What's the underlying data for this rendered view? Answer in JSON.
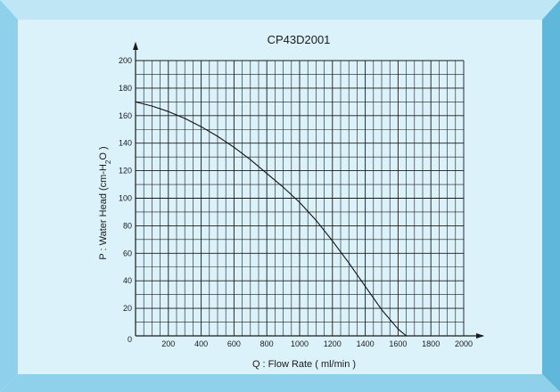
{
  "colors": {
    "panel": "#dcf2fa",
    "bevel_light": "#bfe6f4",
    "bevel_mid": "#8fd0ea",
    "bevel_dark": "#5fb8dc",
    "grid": "#1a1a1a",
    "curve": "#111111"
  },
  "chart_data": {
    "type": "line",
    "title": "CP43D2001",
    "xlabel": "Q : Flow Rate ( ml/min )",
    "ylabel_main": "P : Water Head  (cm-H",
    "ylabel_sub": "2",
    "ylabel_end": "O )",
    "xlim": [
      0,
      2000
    ],
    "ylim": [
      0,
      200
    ],
    "x_major_step": 200,
    "x_minor_step": 50,
    "y_major_step": 20,
    "y_minor_step": 10,
    "x_ticks": [
      "200",
      "400",
      "600",
      "800",
      "1000",
      "1200",
      "1400",
      "1600",
      "1800",
      "2000"
    ],
    "y_ticks": [
      "0",
      "20",
      "40",
      "60",
      "80",
      "100",
      "120",
      "140",
      "160",
      "180",
      "200"
    ],
    "grid": true,
    "series": [
      {
        "x": [
          0,
          100,
          200,
          300,
          400,
          500,
          600,
          700,
          800,
          900,
          1000,
          1100,
          1200,
          1300,
          1400,
          1500,
          1600,
          1650
        ],
        "y": [
          170,
          167,
          163,
          158,
          152,
          145,
          137,
          128,
          118,
          108,
          97,
          84,
          69,
          53,
          36,
          19,
          5,
          0
        ]
      }
    ]
  }
}
